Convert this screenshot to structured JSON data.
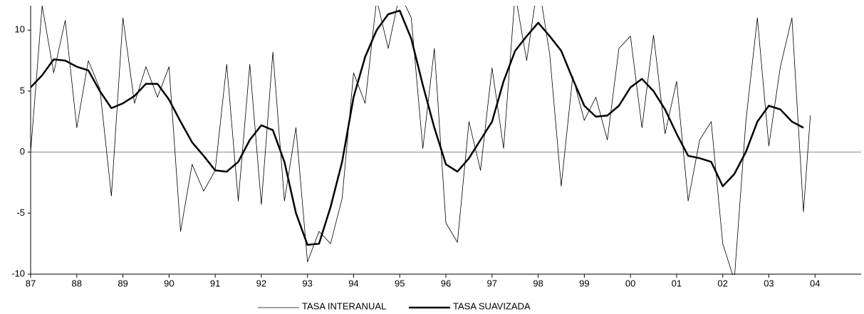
{
  "chart_data": {
    "type": "line",
    "xlim": [
      1987,
      2005
    ],
    "xticks": [
      {
        "value": 1987,
        "label": "87"
      },
      {
        "value": 1988,
        "label": "88"
      },
      {
        "value": 1989,
        "label": "89"
      },
      {
        "value": 1990,
        "label": "90"
      },
      {
        "value": 1991,
        "label": "91"
      },
      {
        "value": 1992,
        "label": "92"
      },
      {
        "value": 1993,
        "label": "93"
      },
      {
        "value": 1994,
        "label": "94"
      },
      {
        "value": 1995,
        "label": "95"
      },
      {
        "value": 1996,
        "label": "96"
      },
      {
        "value": 1997,
        "label": "97"
      },
      {
        "value": 1998,
        "label": "98"
      },
      {
        "value": 1999,
        "label": "99"
      },
      {
        "value": 2000,
        "label": "00"
      },
      {
        "value": 2001,
        "label": "01"
      },
      {
        "value": 2002,
        "label": "02"
      },
      {
        "value": 2003,
        "label": "03"
      },
      {
        "value": 2004,
        "label": "04"
      }
    ],
    "ylim": [
      -10,
      12
    ],
    "yticks": [
      -10,
      -5,
      0,
      5,
      10
    ],
    "series": [
      {
        "name": "TASA INTERANUAL",
        "color": "#000000",
        "x": [
          1987,
          1987.25,
          1987.5,
          1987.75,
          1988,
          1988.25,
          1988.5,
          1988.75,
          1989,
          1989.25,
          1989.5,
          1989.75,
          1990,
          1990.25,
          1990.5,
          1990.75,
          1991,
          1991.25,
          1991.5,
          1991.75,
          1992,
          1992.25,
          1992.5,
          1992.75,
          1993,
          1993.25,
          1993.5,
          1993.75,
          1994,
          1994.25,
          1994.5,
          1994.75,
          1995,
          1995.25,
          1995.5,
          1995.75,
          1996,
          1996.25,
          1996.5,
          1996.75,
          1997,
          1997.25,
          1997.5,
          1997.75,
          1998,
          1998.25,
          1998.5,
          1998.75,
          1999,
          1999.25,
          1999.5,
          1999.75,
          2000,
          2000.25,
          2000.5,
          2000.75,
          2001,
          2001.25,
          2001.5,
          2001.75,
          2002,
          2002.25,
          2002.5,
          2002.75,
          2003,
          2003.25,
          2003.5,
          2003.75,
          2003.9
        ],
        "values": [
          0.0,
          12,
          6.5,
          10.8,
          2.0,
          7.5,
          5.2,
          -3.6,
          11,
          4.0,
          7.0,
          4.5,
          7.0,
          -6.5,
          -1.0,
          -3.2,
          -1.5,
          7.2,
          -4.0,
          7.2,
          -4.3,
          8.2,
          -4.0,
          2.0,
          -9.0,
          -6.5,
          -7.5,
          -3.8,
          6.5,
          4.0,
          12.5,
          8.5,
          13,
          11,
          0.3,
          8.5,
          -5.8,
          -7.4,
          2.5,
          -1.5,
          6.9,
          0.3,
          13,
          7.5,
          14,
          8.0,
          -2.8,
          6.2,
          2.6,
          4.5,
          1.0,
          8.5,
          9.5,
          2.0,
          9.6,
          1.5,
          5.8,
          -4.0,
          1.0,
          2.5,
          -7.5,
          -10.5,
          2.5,
          11,
          0.5,
          7.0,
          11,
          -4.9,
          3.0
        ]
      },
      {
        "name": "TASA SUAVIZADA",
        "color": "#000000",
        "x": [
          1987,
          1987.25,
          1987.5,
          1987.75,
          1988,
          1988.25,
          1988.5,
          1988.75,
          1989,
          1989.25,
          1989.5,
          1989.75,
          1990,
          1990.25,
          1990.5,
          1990.75,
          1991,
          1991.25,
          1991.5,
          1991.75,
          1992,
          1992.25,
          1992.5,
          1992.75,
          1993,
          1993.25,
          1993.5,
          1993.75,
          1994,
          1994.25,
          1994.5,
          1994.75,
          1995,
          1995.25,
          1995.5,
          1995.75,
          1996,
          1996.25,
          1996.5,
          1996.75,
          1997,
          1997.25,
          1997.5,
          1997.75,
          1998,
          1998.25,
          1998.5,
          1998.75,
          1999,
          1999.25,
          1999.5,
          1999.75,
          2000,
          2000.25,
          2000.5,
          2000.75,
          2001,
          2001.25,
          2001.5,
          2001.75,
          2002,
          2002.25,
          2002.5,
          2002.75,
          2003,
          2003.25,
          2003.5,
          2003.75
        ],
        "values": [
          5.3,
          6.3,
          7.6,
          7.5,
          7.0,
          6.7,
          5.0,
          3.6,
          4.0,
          4.6,
          5.6,
          5.6,
          4.3,
          2.5,
          0.8,
          -0.3,
          -1.5,
          -1.6,
          -0.8,
          1.0,
          2.2,
          1.8,
          -0.8,
          -5.0,
          -7.6,
          -7.5,
          -4.5,
          -0.8,
          4.5,
          7.8,
          10.0,
          11.3,
          11.6,
          9.3,
          5.5,
          2.0,
          -1.0,
          -1.6,
          -0.5,
          1.0,
          2.5,
          5.8,
          8.3,
          9.5,
          10.6,
          9.5,
          8.3,
          6.0,
          3.8,
          2.9,
          3.0,
          3.8,
          5.3,
          6.0,
          5.0,
          3.5,
          1.5,
          -0.3,
          -0.5,
          -0.8,
          -2.8,
          -1.8,
          0.0,
          2.5,
          3.8,
          3.5,
          2.5,
          2.0
        ]
      }
    ]
  }
}
